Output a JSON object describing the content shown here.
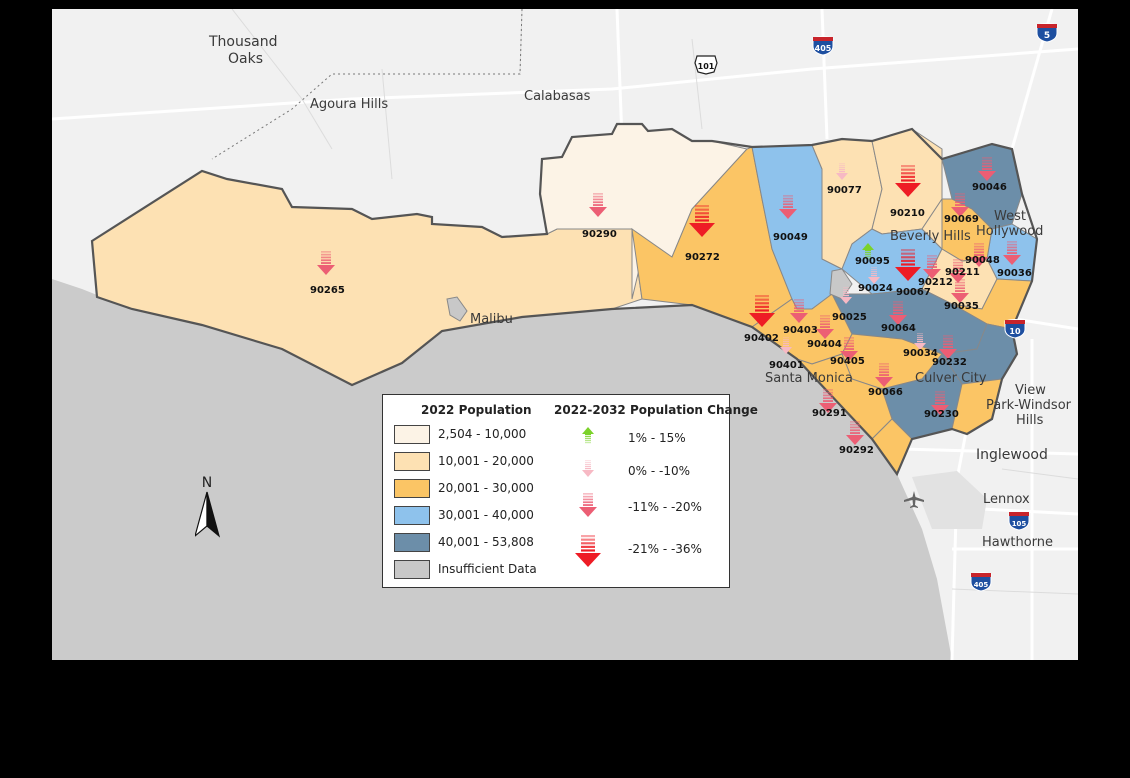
{
  "places": {
    "thousand_oaks": "Thousand\nOaks",
    "thousand": "Thousand",
    "oaks": "Oaks",
    "agoura_hills": "Agoura Hills",
    "calabasas": "Calabasas",
    "malibu": "Malibu",
    "beverly_hills": "Beverly Hills",
    "west": "West",
    "hollywood": "Hollywood",
    "santa_monica": "Santa Monica",
    "culver_city": "Culver City",
    "view": "View",
    "park_windsor": "Park-Windsor",
    "hills": "Hills",
    "inglewood": "Inglewood",
    "lennox": "Lennox",
    "hawthorne": "Hawthorne"
  },
  "shields": {
    "i405_top": "405",
    "i5": "5",
    "us101": "101",
    "i10": "10",
    "i105": "105",
    "i405_bottom": "405"
  },
  "zips": {
    "z90265": "90265",
    "z90290": "90290",
    "z90272": "90272",
    "z90049": "90049",
    "z90077": "90077",
    "z90210": "90210",
    "z90046": "90046",
    "z90069": "90069",
    "z90095": "90095",
    "z90024": "90024",
    "z90067": "90067",
    "z90212": "90212",
    "z90211": "90211",
    "z90048": "90048",
    "z90036": "90036",
    "z90035": "90035",
    "z90025": "90025",
    "z90064": "90064",
    "z90403": "90403",
    "z90402": "90402",
    "z90404": "90404",
    "z90401": "90401",
    "z90405": "90405",
    "z90034": "90034",
    "z90232": "90232",
    "z90066": "90066",
    "z90291": "90291",
    "z90230": "90230",
    "z90292": "90292"
  },
  "legend": {
    "pop_title": "2022 Population",
    "change_title": "2022-2032 Population Change",
    "pop_classes": [
      {
        "label": "2,504   - 10,000",
        "color": "#fcf3e6"
      },
      {
        "label": "10,001 - 20,000",
        "color": "#fde1b3"
      },
      {
        "label": "20,001 - 30,000",
        "color": "#fbc565"
      },
      {
        "label": "30,001 - 40,000",
        "color": "#8ec2ec"
      },
      {
        "label": "40,001 - 53,808",
        "color": "#6c8ea9"
      },
      {
        "label": "Insufficient Data",
        "color": "#c8c8c8"
      }
    ],
    "change_classes": [
      {
        "label": "1% - 15%",
        "color": "#7bd22a",
        "direction": "up",
        "size": "small"
      },
      {
        "label": "0% - -10%",
        "color": "#f7b9c4",
        "direction": "down",
        "size": "small"
      },
      {
        "label": "-11% - -20%",
        "color": "#ec5e74",
        "direction": "down",
        "size": "medium"
      },
      {
        "label": "-21% - -36%",
        "color": "#ee1c25",
        "direction": "down",
        "size": "large"
      }
    ]
  },
  "north_arrow": "N",
  "colors": {
    "ocean": "#cbcbcb",
    "land": "#f1f1f1",
    "road": "#ffffff",
    "boundary": "#555555"
  }
}
